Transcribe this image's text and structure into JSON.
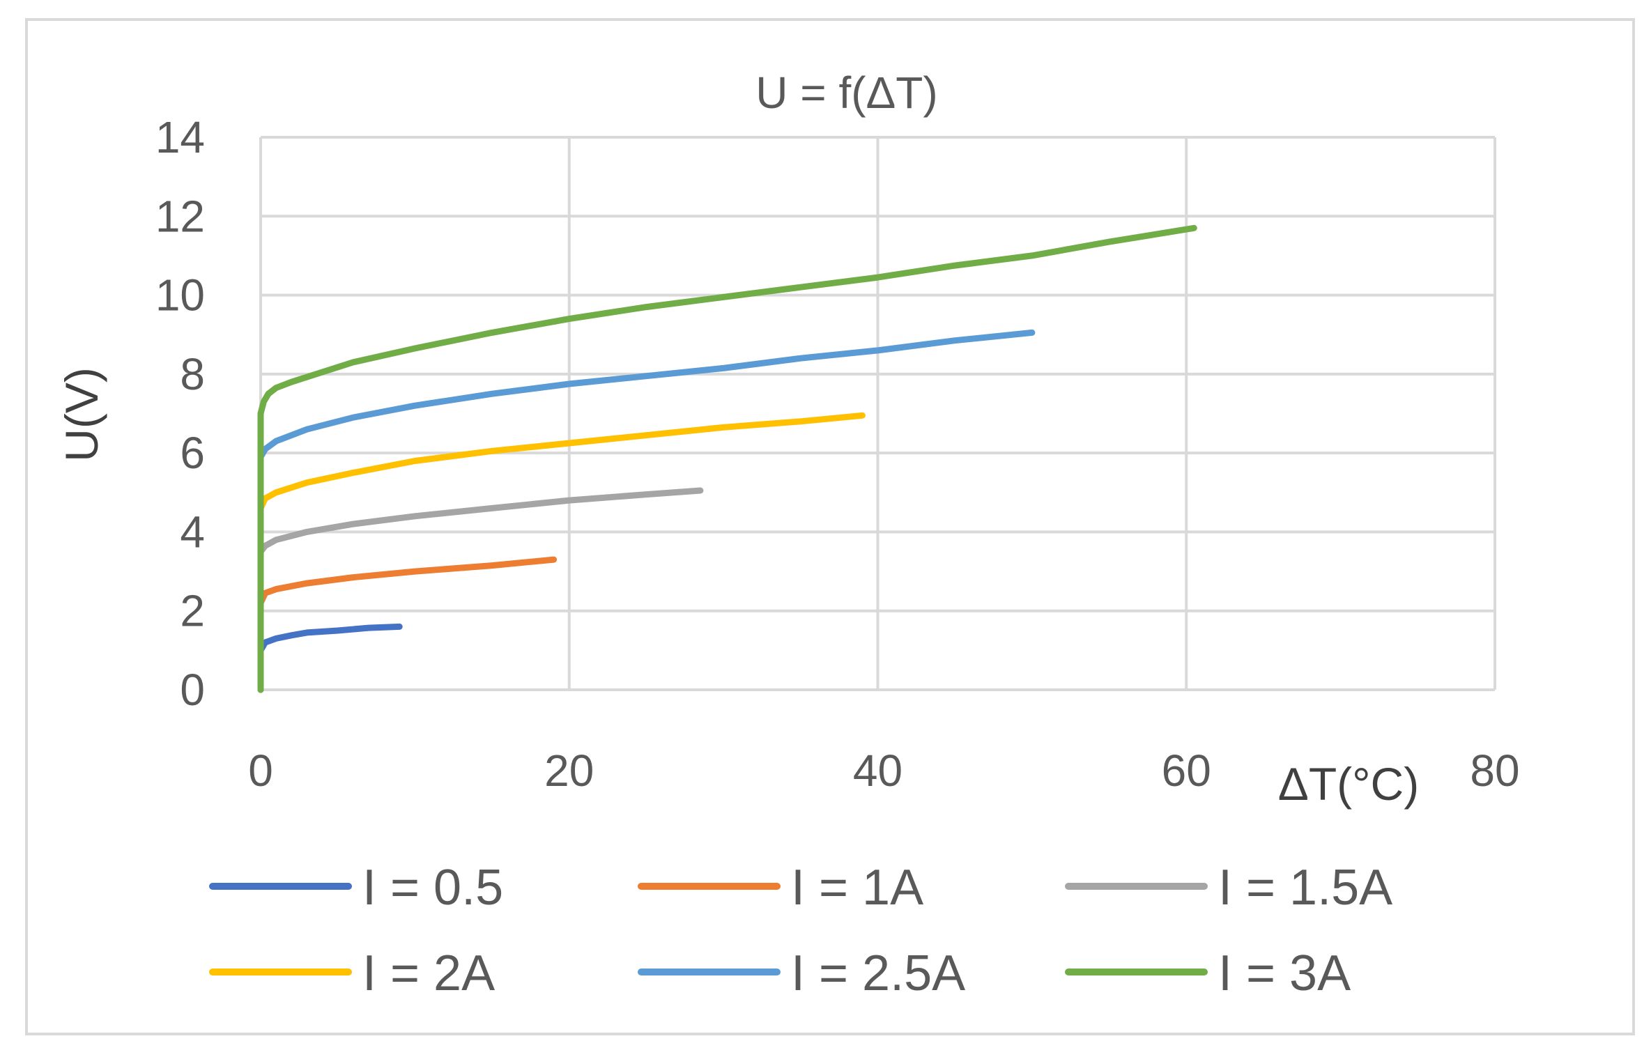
{
  "chart_data": {
    "type": "line",
    "title": "U = f(ΔT)",
    "xlabel": "ΔT(°C)",
    "ylabel": "U(V)",
    "xlim": [
      0,
      80
    ],
    "ylim": [
      0,
      14
    ],
    "xticks": [
      "0",
      "20",
      "40",
      "60",
      "80"
    ],
    "yticks": [
      "0",
      "2",
      "4",
      "6",
      "8",
      "10",
      "12",
      "14"
    ],
    "grid": true,
    "legend_position": "bottom",
    "series": [
      {
        "name": "I = 0.5",
        "color": "#4472C4",
        "x": [
          0,
          0,
          0.3,
          1,
          2,
          3,
          5,
          7,
          9
        ],
        "y": [
          0,
          1.0,
          1.2,
          1.3,
          1.38,
          1.45,
          1.5,
          1.57,
          1.6
        ]
      },
      {
        "name": "I = 1A",
        "color": "#ED7D31",
        "x": [
          0,
          0,
          0.3,
          1,
          3,
          6,
          10,
          15,
          19
        ],
        "y": [
          0,
          2.2,
          2.45,
          2.55,
          2.7,
          2.85,
          3.0,
          3.15,
          3.3
        ]
      },
      {
        "name": "I = 1.5A",
        "color": "#A5A5A5",
        "x": [
          0,
          0,
          0.3,
          1,
          3,
          6,
          10,
          15,
          20,
          25,
          28.5
        ],
        "y": [
          0,
          3.5,
          3.65,
          3.8,
          4.0,
          4.2,
          4.4,
          4.6,
          4.8,
          4.95,
          5.05
        ]
      },
      {
        "name": "I = 2A",
        "color": "#FFC000",
        "x": [
          0,
          0,
          0.3,
          1,
          3,
          6,
          10,
          15,
          20,
          25,
          30,
          35,
          39
        ],
        "y": [
          0,
          4.6,
          4.85,
          5.0,
          5.25,
          5.5,
          5.8,
          6.05,
          6.25,
          6.45,
          6.65,
          6.8,
          6.95
        ]
      },
      {
        "name": "I = 2.5A",
        "color": "#5B9BD5",
        "x": [
          0,
          0,
          0.3,
          1,
          3,
          6,
          10,
          15,
          20,
          25,
          30,
          35,
          40,
          45,
          50
        ],
        "y": [
          0,
          5.9,
          6.1,
          6.3,
          6.6,
          6.9,
          7.2,
          7.5,
          7.75,
          7.95,
          8.15,
          8.4,
          8.6,
          8.85,
          9.05
        ]
      },
      {
        "name": "I = 3A",
        "color": "#70AD47",
        "x": [
          0,
          0,
          0.2,
          0.5,
          1,
          2,
          4,
          6,
          10,
          15,
          20,
          25,
          30,
          35,
          40,
          45,
          50,
          55,
          60.5
        ],
        "y": [
          0,
          7.0,
          7.3,
          7.5,
          7.65,
          7.8,
          8.05,
          8.3,
          8.65,
          9.05,
          9.4,
          9.7,
          9.95,
          10.2,
          10.45,
          10.75,
          11.0,
          11.35,
          11.7
        ]
      }
    ]
  }
}
